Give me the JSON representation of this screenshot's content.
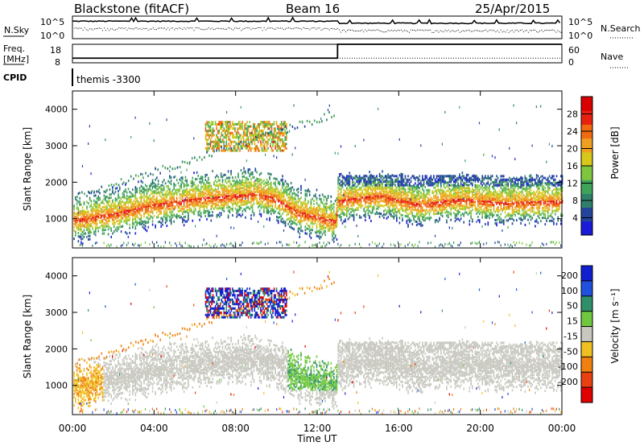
{
  "header": {
    "station": "Blackstone (fitACF)",
    "beam": "Beam 16",
    "date": "25/Apr/2015"
  },
  "strip": {
    "nsky_label": "N.Sky",
    "nsky_scale_top": "10^5",
    "nsky_scale_bottom": "10^0",
    "nsearch_label": "N.Search",
    "freq_label_1": "Freq.",
    "freq_label_2": "[MHz]",
    "freq_top": "18",
    "freq_bottom": "8",
    "nave_top": "60",
    "nave_bottom": "0",
    "nave_label": "Nave",
    "cpid_label": "CPID",
    "cpid_value": "themis -3300"
  },
  "axes": {
    "x_ticks": [
      "00:00",
      "04:00",
      "08:00",
      "12:00",
      "16:00",
      "20:00",
      "00:00"
    ],
    "x_label": "Time UT",
    "y_ticks": [
      "1000",
      "2000",
      "3000",
      "4000"
    ],
    "y_label": "Slant Range [km]"
  },
  "colorbars": {
    "power": {
      "label": "Power [dB]",
      "ticks": [
        "4",
        "8",
        "12",
        "16",
        "20",
        "24",
        "28"
      ],
      "colors": [
        "#1a1ad8",
        "#22449a",
        "#2f7f6a",
        "#3fa35a",
        "#7fc63f",
        "#d8c81a",
        "#f0a020",
        "#f06a10",
        "#e82010",
        "#d80000"
      ]
    },
    "velocity": {
      "label": "Velocity [m s⁻¹]",
      "ticks": [
        "200",
        "100",
        "50",
        "15",
        "-15",
        "-50",
        "-100",
        "-200"
      ],
      "colors": [
        "#1020d0",
        "#2050e0",
        "#2f8f6a",
        "#70c840",
        "#c8c8c0",
        "#f0c020",
        "#f08010",
        "#e84010",
        "#e00000"
      ]
    }
  },
  "chart_data": [
    {
      "type": "line",
      "title": "N.Sky",
      "x_unit": "hours UT",
      "x_range": [
        0,
        24
      ],
      "y_scale": "log",
      "y_range": [
        1,
        100000
      ],
      "series": [
        {
          "name": "N.Sky",
          "x": [
            0,
            13,
            13,
            24
          ],
          "y": [
            30000,
            30000,
            8000,
            8000
          ]
        },
        {
          "name": "N.Search",
          "x": [
            0,
            13,
            13,
            24
          ],
          "y": [
            300,
            300,
            80,
            80
          ]
        }
      ]
    },
    {
      "type": "line",
      "title": "Freq.",
      "x_unit": "hours UT",
      "x_range": [
        0,
        24
      ],
      "series": [
        {
          "name": "Freq.",
          "unit": "MHz",
          "y_range": [
            8,
            18
          ],
          "x": [
            0,
            13,
            13,
            24
          ],
          "y": [
            10.5,
            10.5,
            18,
            18
          ]
        },
        {
          "name": "Nave",
          "y_range": [
            0,
            60
          ],
          "x": [
            0,
            24
          ],
          "y": [
            15,
            15
          ]
        }
      ]
    },
    {
      "type": "heatmap",
      "title": "Power",
      "x_unit": "hours UT",
      "x_range": [
        0,
        24
      ],
      "y_label": "Slant Range [km]",
      "y_range": [
        200,
        4500
      ],
      "color_label": "Power [dB]",
      "color_range": [
        0,
        32
      ],
      "main_band_center_km": {
        "x": [
          0,
          2,
          4,
          6,
          8,
          9,
          10,
          11,
          12.9,
          13,
          15,
          17,
          19,
          21,
          24
        ],
        "y": [
          1000,
          1200,
          1450,
          1600,
          1700,
          1750,
          1600,
          1250,
          1000,
          1550,
          1700,
          1450,
          1600,
          1500,
          1550
        ]
      },
      "upper_patch": {
        "x": [
          6.5,
          10.5
        ],
        "y": [
          2900,
          3700
        ]
      }
    },
    {
      "type": "heatmap",
      "title": "Velocity",
      "x_unit": "hours UT",
      "x_range": [
        0,
        24
      ],
      "y_label": "Slant Range [km]",
      "y_range": [
        200,
        4500
      ],
      "color_label": "Velocity [m s-1]",
      "color_range": [
        -200,
        200
      ],
      "ground_scatter_band_km": {
        "x": [
          0,
          13,
          13,
          24
        ],
        "y": [
          1500,
          1500,
          1700,
          1700
        ]
      },
      "upper_patch": {
        "x": [
          6.5,
          10.5
        ],
        "y": [
          2900,
          3700
        ],
        "dominant_velocity": 100
      }
    }
  ]
}
